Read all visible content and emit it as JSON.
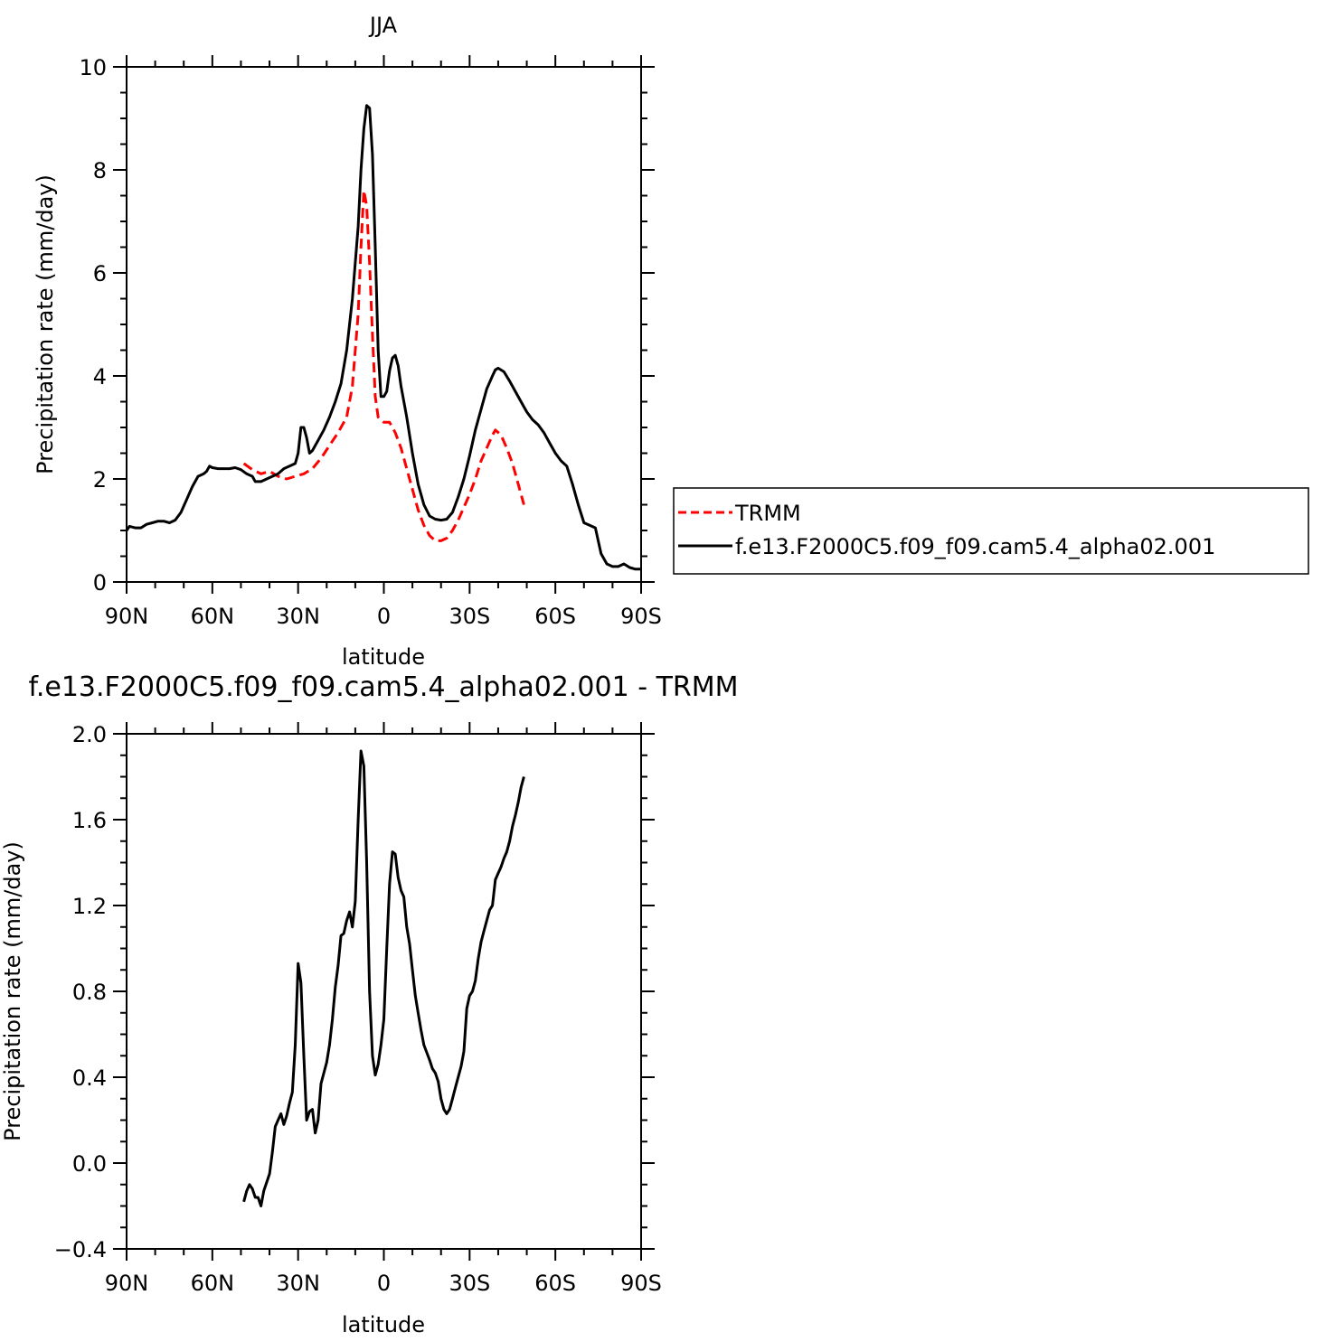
{
  "chart_data": [
    {
      "type": "line",
      "title": "JJA",
      "xlabel": "latitude",
      "ylabel": "Precipitation rate (mm/day)",
      "xlim": [
        90,
        -90
      ],
      "ylim": [
        0,
        10
      ],
      "xticks": [
        {
          "value": 90,
          "label": "90N"
        },
        {
          "value": 60,
          "label": "60N"
        },
        {
          "value": 30,
          "label": "30N"
        },
        {
          "value": 0,
          "label": "0"
        },
        {
          "value": -30,
          "label": "30S"
        },
        {
          "value": -60,
          "label": "60S"
        },
        {
          "value": -90,
          "label": "90S"
        }
      ],
      "yticks": [
        {
          "value": 0,
          "label": "0"
        },
        {
          "value": 2,
          "label": "2"
        },
        {
          "value": 4,
          "label": "4"
        },
        {
          "value": 6,
          "label": "6"
        },
        {
          "value": 8,
          "label": "8"
        },
        {
          "value": 10,
          "label": "10"
        }
      ],
      "legend_position": "right",
      "series": [
        {
          "name": "TRMM",
          "color": "#ff0000",
          "dashed": true,
          "points": [
            [
              49,
              2.3
            ],
            [
              46,
              2.18
            ],
            [
              43,
              2.1
            ],
            [
              40,
              2.15
            ],
            [
              37,
              2.05
            ],
            [
              34,
              2.0
            ],
            [
              31,
              2.05
            ],
            [
              28,
              2.1
            ],
            [
              25,
              2.2
            ],
            [
              22,
              2.4
            ],
            [
              19,
              2.65
            ],
            [
              16,
              2.9
            ],
            [
              13,
              3.2
            ],
            [
              11,
              3.8
            ],
            [
              9,
              5.2
            ],
            [
              8,
              6.5
            ],
            [
              7,
              7.6
            ],
            [
              6,
              7.3
            ],
            [
              5,
              6.2
            ],
            [
              4,
              4.8
            ],
            [
              3,
              3.6
            ],
            [
              2,
              3.2
            ],
            [
              0,
              3.1
            ],
            [
              -2,
              3.1
            ],
            [
              -4,
              2.9
            ],
            [
              -6,
              2.6
            ],
            [
              -8,
              2.2
            ],
            [
              -10,
              1.8
            ],
            [
              -12,
              1.4
            ],
            [
              -14,
              1.1
            ],
            [
              -16,
              0.9
            ],
            [
              -18,
              0.8
            ],
            [
              -20,
              0.8
            ],
            [
              -22,
              0.85
            ],
            [
              -24,
              1.0
            ],
            [
              -26,
              1.2
            ],
            [
              -28,
              1.45
            ],
            [
              -30,
              1.7
            ],
            [
              -32,
              2.0
            ],
            [
              -34,
              2.35
            ],
            [
              -36,
              2.6
            ],
            [
              -38,
              2.85
            ],
            [
              -39,
              2.95
            ],
            [
              -41,
              2.85
            ],
            [
              -43,
              2.6
            ],
            [
              -45,
              2.3
            ],
            [
              -47,
              1.9
            ],
            [
              -49,
              1.5
            ]
          ]
        },
        {
          "name": "f.e13.F2000C5.f09_f09.cam5.4_alpha02.001",
          "color": "#000000",
          "dashed": false,
          "points": [
            [
              90,
              1.0
            ],
            [
              89,
              1.08
            ],
            [
              87,
              1.05
            ],
            [
              85,
              1.05
            ],
            [
              83,
              1.12
            ],
            [
              81,
              1.15
            ],
            [
              79,
              1.18
            ],
            [
              77,
              1.18
            ],
            [
              75,
              1.15
            ],
            [
              73,
              1.2
            ],
            [
              71,
              1.35
            ],
            [
              69,
              1.6
            ],
            [
              67,
              1.85
            ],
            [
              65,
              2.05
            ],
            [
              63,
              2.1
            ],
            [
              62,
              2.15
            ],
            [
              61,
              2.25
            ],
            [
              60,
              2.22
            ],
            [
              58,
              2.2
            ],
            [
              56,
              2.2
            ],
            [
              54,
              2.2
            ],
            [
              52,
              2.22
            ],
            [
              50,
              2.18
            ],
            [
              48,
              2.1
            ],
            [
              46,
              2.05
            ],
            [
              45,
              1.95
            ],
            [
              43,
              1.95
            ],
            [
              41,
              2.0
            ],
            [
              39,
              2.05
            ],
            [
              37,
              2.1
            ],
            [
              35,
              2.2
            ],
            [
              33,
              2.25
            ],
            [
              31,
              2.3
            ],
            [
              30,
              2.5
            ],
            [
              29,
              3.0
            ],
            [
              28,
              3.0
            ],
            [
              27,
              2.8
            ],
            [
              26,
              2.5
            ],
            [
              25,
              2.55
            ],
            [
              23,
              2.75
            ],
            [
              21,
              2.95
            ],
            [
              19,
              3.2
            ],
            [
              17,
              3.5
            ],
            [
              15,
              3.85
            ],
            [
              13,
              4.5
            ],
            [
              11,
              5.5
            ],
            [
              9,
              6.9
            ],
            [
              8,
              8.0
            ],
            [
              7,
              8.8
            ],
            [
              6,
              9.25
            ],
            [
              5,
              9.2
            ],
            [
              4,
              8.3
            ],
            [
              3,
              6.5
            ],
            [
              2,
              4.5
            ],
            [
              1,
              3.6
            ],
            [
              0,
              3.6
            ],
            [
              -1,
              3.7
            ],
            [
              -2,
              4.1
            ],
            [
              -3,
              4.35
            ],
            [
              -4,
              4.4
            ],
            [
              -5,
              4.2
            ],
            [
              -6,
              3.8
            ],
            [
              -8,
              3.2
            ],
            [
              -10,
              2.5
            ],
            [
              -12,
              1.9
            ],
            [
              -14,
              1.5
            ],
            [
              -16,
              1.28
            ],
            [
              -18,
              1.22
            ],
            [
              -20,
              1.2
            ],
            [
              -22,
              1.22
            ],
            [
              -24,
              1.35
            ],
            [
              -26,
              1.65
            ],
            [
              -28,
              2.0
            ],
            [
              -30,
              2.45
            ],
            [
              -32,
              2.95
            ],
            [
              -34,
              3.35
            ],
            [
              -36,
              3.75
            ],
            [
              -38,
              4.0
            ],
            [
              -39,
              4.12
            ],
            [
              -40,
              4.15
            ],
            [
              -42,
              4.08
            ],
            [
              -44,
              3.9
            ],
            [
              -46,
              3.7
            ],
            [
              -48,
              3.5
            ],
            [
              -50,
              3.3
            ],
            [
              -52,
              3.15
            ],
            [
              -54,
              3.05
            ],
            [
              -56,
              2.9
            ],
            [
              -58,
              2.7
            ],
            [
              -60,
              2.5
            ],
            [
              -62,
              2.35
            ],
            [
              -64,
              2.25
            ],
            [
              -66,
              1.9
            ],
            [
              -68,
              1.5
            ],
            [
              -70,
              1.15
            ],
            [
              -72,
              1.1
            ],
            [
              -74,
              1.05
            ],
            [
              -76,
              0.55
            ],
            [
              -78,
              0.35
            ],
            [
              -80,
              0.3
            ],
            [
              -82,
              0.3
            ],
            [
              -84,
              0.35
            ],
            [
              -86,
              0.28
            ],
            [
              -88,
              0.25
            ],
            [
              -90,
              0.25
            ]
          ]
        }
      ]
    },
    {
      "type": "line",
      "title": "f.e13.F2000C5.f09_f09.cam5.4_alpha02.001 - TRMM",
      "xlabel": "latitude",
      "ylabel": "Precipitation rate (mm/day)",
      "xlim": [
        90,
        -90
      ],
      "ylim": [
        -0.4,
        2.0
      ],
      "xticks": [
        {
          "value": 90,
          "label": "90N"
        },
        {
          "value": 60,
          "label": "60N"
        },
        {
          "value": 30,
          "label": "30N"
        },
        {
          "value": 0,
          "label": "0"
        },
        {
          "value": -30,
          "label": "30S"
        },
        {
          "value": -60,
          "label": "60S"
        },
        {
          "value": -90,
          "label": "90S"
        }
      ],
      "yticks": [
        {
          "value": -0.4,
          "label": "−0.4"
        },
        {
          "value": 0.0,
          "label": "0.0"
        },
        {
          "value": 0.4,
          "label": "0.4"
        },
        {
          "value": 0.8,
          "label": "0.8"
        },
        {
          "value": 1.2,
          "label": "1.2"
        },
        {
          "value": 1.6,
          "label": "1.6"
        },
        {
          "value": 2.0,
          "label": "2.0"
        }
      ],
      "series": [
        {
          "color": "#000000",
          "dashed": false,
          "points": [
            [
              49,
              -0.18
            ],
            [
              48,
              -0.13
            ],
            [
              47,
              -0.1
            ],
            [
              46,
              -0.12
            ],
            [
              45,
              -0.16
            ],
            [
              44,
              -0.16
            ],
            [
              43,
              -0.2
            ],
            [
              42,
              -0.13
            ],
            [
              40,
              -0.05
            ],
            [
              39,
              0.05
            ],
            [
              38,
              0.17
            ],
            [
              37,
              0.2
            ],
            [
              36,
              0.23
            ],
            [
              35,
              0.18
            ],
            [
              34,
              0.22
            ],
            [
              33,
              0.28
            ],
            [
              32,
              0.33
            ],
            [
              31,
              0.55
            ],
            [
              30,
              0.93
            ],
            [
              29,
              0.84
            ],
            [
              28,
              0.5
            ],
            [
              27,
              0.2
            ],
            [
              26,
              0.24
            ],
            [
              25,
              0.25
            ],
            [
              24,
              0.14
            ],
            [
              23,
              0.2
            ],
            [
              22,
              0.37
            ],
            [
              20,
              0.47
            ],
            [
              19,
              0.55
            ],
            [
              18,
              0.67
            ],
            [
              17,
              0.82
            ],
            [
              16,
              0.92
            ],
            [
              15,
              1.06
            ],
            [
              14,
              1.07
            ],
            [
              13,
              1.13
            ],
            [
              12,
              1.17
            ],
            [
              11,
              1.1
            ],
            [
              10,
              1.22
            ],
            [
              9,
              1.6
            ],
            [
              8,
              1.92
            ],
            [
              7,
              1.85
            ],
            [
              6,
              1.4
            ],
            [
              5,
              0.8
            ],
            [
              4,
              0.5
            ],
            [
              3,
              0.41
            ],
            [
              2,
              0.46
            ],
            [
              1,
              0.55
            ],
            [
              0,
              0.67
            ],
            [
              -1,
              1.0
            ],
            [
              -2,
              1.3
            ],
            [
              -3,
              1.45
            ],
            [
              -4,
              1.44
            ],
            [
              -5,
              1.33
            ],
            [
              -6,
              1.27
            ],
            [
              -7,
              1.24
            ],
            [
              -8,
              1.1
            ],
            [
              -9,
              1.02
            ],
            [
              -10,
              0.9
            ],
            [
              -11,
              0.78
            ],
            [
              -12,
              0.7
            ],
            [
              -13,
              0.62
            ],
            [
              -14,
              0.55
            ],
            [
              -16,
              0.48
            ],
            [
              -17,
              0.44
            ],
            [
              -18,
              0.42
            ],
            [
              -19,
              0.38
            ],
            [
              -20,
              0.3
            ],
            [
              -21,
              0.25
            ],
            [
              -22,
              0.23
            ],
            [
              -23,
              0.25
            ],
            [
              -24,
              0.3
            ],
            [
              -25,
              0.35
            ],
            [
              -26,
              0.4
            ],
            [
              -27,
              0.45
            ],
            [
              -28,
              0.52
            ],
            [
              -29,
              0.72
            ],
            [
              -30,
              0.78
            ],
            [
              -31,
              0.8
            ],
            [
              -32,
              0.85
            ],
            [
              -33,
              0.95
            ],
            [
              -34,
              1.03
            ],
            [
              -35,
              1.08
            ],
            [
              -36,
              1.13
            ],
            [
              -37,
              1.18
            ],
            [
              -38,
              1.2
            ],
            [
              -39,
              1.32
            ],
            [
              -40,
              1.35
            ],
            [
              -41,
              1.38
            ],
            [
              -42,
              1.42
            ],
            [
              -43,
              1.45
            ],
            [
              -44,
              1.5
            ],
            [
              -45,
              1.57
            ],
            [
              -46,
              1.62
            ],
            [
              -47,
              1.68
            ],
            [
              -48,
              1.75
            ],
            [
              -49,
              1.8
            ]
          ]
        }
      ]
    }
  ],
  "legend": {
    "items": [
      {
        "label": "TRMM",
        "color": "#ff0000",
        "dashed": true
      },
      {
        "label": "f.e13.F2000C5.f09_f09.cam5.4_alpha02.001",
        "color": "#000000",
        "dashed": false
      }
    ]
  }
}
